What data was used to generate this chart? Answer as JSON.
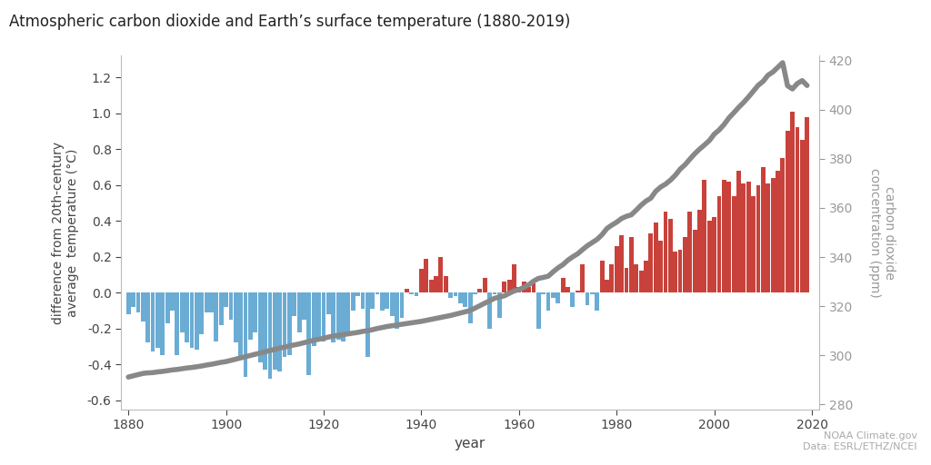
{
  "title": "Atmospheric carbon dioxide and Earth’s surface temperature (1880-2019)",
  "ylabel_left": "difference from 20th-century\naverage  temperature (°C)",
  "ylabel_right": "carbon dioxide\nconcentration (ppm)",
  "xlabel": "year",
  "credit": "NOAA Climate.gov\nData: ESRL/ETHZ/NCEI",
  "ylim_left": [
    -0.65,
    1.32
  ],
  "ylim_right": [
    278,
    422
  ],
  "xlim": [
    1878.5,
    2021.5
  ],
  "yticks_left": [
    -0.6,
    -0.4,
    -0.2,
    0.0,
    0.2,
    0.4,
    0.6,
    0.8,
    1.0,
    1.2
  ],
  "yticks_right": [
    280,
    300,
    320,
    340,
    360,
    380,
    400,
    420
  ],
  "xticks": [
    1880,
    1900,
    1920,
    1940,
    1960,
    1980,
    2000,
    2020
  ],
  "bar_color_pos": "#c8423b",
  "bar_color_neg": "#6aacd4",
  "line_color": "#888888",
  "line_width": 4.0,
  "years": [
    1880,
    1881,
    1882,
    1883,
    1884,
    1885,
    1886,
    1887,
    1888,
    1889,
    1890,
    1891,
    1892,
    1893,
    1894,
    1895,
    1896,
    1897,
    1898,
    1899,
    1900,
    1901,
    1902,
    1903,
    1904,
    1905,
    1906,
    1907,
    1908,
    1909,
    1910,
    1911,
    1912,
    1913,
    1914,
    1915,
    1916,
    1917,
    1918,
    1919,
    1920,
    1921,
    1922,
    1923,
    1924,
    1925,
    1926,
    1927,
    1928,
    1929,
    1930,
    1931,
    1932,
    1933,
    1934,
    1935,
    1936,
    1937,
    1938,
    1939,
    1940,
    1941,
    1942,
    1943,
    1944,
    1945,
    1946,
    1947,
    1948,
    1949,
    1950,
    1951,
    1952,
    1953,
    1954,
    1955,
    1956,
    1957,
    1958,
    1959,
    1960,
    1961,
    1962,
    1963,
    1964,
    1965,
    1966,
    1967,
    1968,
    1969,
    1970,
    1971,
    1972,
    1973,
    1974,
    1975,
    1976,
    1977,
    1978,
    1979,
    1980,
    1981,
    1982,
    1983,
    1984,
    1985,
    1986,
    1987,
    1988,
    1989,
    1990,
    1991,
    1992,
    1993,
    1994,
    1995,
    1996,
    1997,
    1998,
    1999,
    2000,
    2001,
    2002,
    2003,
    2004,
    2005,
    2006,
    2007,
    2008,
    2009,
    2010,
    2011,
    2012,
    2013,
    2014,
    2015,
    2016,
    2017,
    2018,
    2019
  ],
  "temp_anomaly": [
    -0.12,
    -0.08,
    -0.11,
    -0.16,
    -0.28,
    -0.33,
    -0.31,
    -0.35,
    -0.17,
    -0.1,
    -0.35,
    -0.22,
    -0.28,
    -0.31,
    -0.32,
    -0.23,
    -0.11,
    -0.11,
    -0.27,
    -0.18,
    -0.08,
    -0.15,
    -0.28,
    -0.37,
    -0.47,
    -0.26,
    -0.22,
    -0.39,
    -0.43,
    -0.48,
    -0.43,
    -0.44,
    -0.36,
    -0.35,
    -0.13,
    -0.22,
    -0.15,
    -0.46,
    -0.3,
    -0.27,
    -0.27,
    -0.12,
    -0.28,
    -0.26,
    -0.27,
    -0.22,
    -0.1,
    -0.02,
    -0.09,
    -0.36,
    -0.09,
    -0.01,
    -0.1,
    -0.09,
    -0.13,
    -0.2,
    -0.14,
    0.02,
    -0.01,
    -0.02,
    0.13,
    0.19,
    0.07,
    0.09,
    0.2,
    0.09,
    -0.03,
    -0.02,
    -0.06,
    -0.08,
    -0.17,
    -0.01,
    0.02,
    0.08,
    -0.2,
    -0.01,
    -0.14,
    0.06,
    0.07,
    0.16,
    0.03,
    0.06,
    0.03,
    0.05,
    -0.2,
    -0.01,
    -0.1,
    -0.03,
    -0.06,
    0.08,
    0.03,
    -0.08,
    0.01,
    0.16,
    -0.07,
    -0.01,
    -0.1,
    0.18,
    0.07,
    0.16,
    0.26,
    0.32,
    0.14,
    0.31,
    0.16,
    0.12,
    0.18,
    0.33,
    0.39,
    0.29,
    0.45,
    0.41,
    0.23,
    0.24,
    0.31,
    0.45,
    0.35,
    0.46,
    0.63,
    0.4,
    0.42,
    0.54,
    0.63,
    0.62,
    0.54,
    0.68,
    0.61,
    0.62,
    0.54,
    0.6,
    0.7,
    0.61,
    0.64,
    0.68,
    0.75,
    0.9,
    1.01,
    0.92,
    0.85,
    0.98
  ],
  "co2": [
    291.1,
    291.6,
    292.1,
    292.6,
    292.8,
    292.9,
    293.2,
    293.4,
    293.7,
    294.0,
    294.2,
    294.5,
    294.8,
    295.0,
    295.3,
    295.6,
    296.0,
    296.3,
    296.7,
    297.1,
    297.4,
    297.9,
    298.4,
    298.9,
    299.4,
    299.9,
    300.4,
    300.9,
    301.4,
    301.9,
    302.4,
    302.9,
    303.3,
    303.8,
    304.2,
    304.6,
    305.1,
    305.6,
    306.1,
    306.5,
    306.9,
    307.4,
    307.8,
    308.1,
    308.4,
    308.7,
    309.0,
    309.3,
    309.7,
    310.0,
    310.4,
    310.9,
    311.3,
    311.7,
    312.0,
    312.3,
    312.6,
    312.9,
    313.2,
    313.5,
    313.8,
    314.2,
    314.6,
    315.0,
    315.4,
    315.8,
    316.2,
    316.7,
    317.2,
    317.7,
    318.2,
    319.2,
    320.2,
    321.2,
    322.2,
    323.2,
    323.7,
    324.2,
    325.2,
    326.2,
    326.7,
    327.7,
    328.7,
    330.2,
    331.3,
    331.7,
    332.2,
    334.0,
    335.6,
    336.9,
    338.7,
    340.1,
    341.3,
    343.0,
    344.6,
    345.9,
    347.2,
    349.1,
    351.6,
    353.0,
    354.2,
    355.7,
    356.6,
    357.2,
    359.1,
    361.1,
    362.8,
    364.0,
    366.8,
    368.5,
    369.7,
    371.3,
    373.3,
    375.8,
    377.6,
    379.9,
    382.1,
    384.0,
    385.7,
    387.5,
    390.1,
    391.8,
    394.0,
    396.7,
    398.8,
    401.0,
    403.0,
    405.2,
    407.6,
    410.0,
    411.6,
    414.1,
    415.4,
    417.3,
    419.2,
    409.8,
    408.5,
    410.7,
    411.9,
    409.9
  ]
}
